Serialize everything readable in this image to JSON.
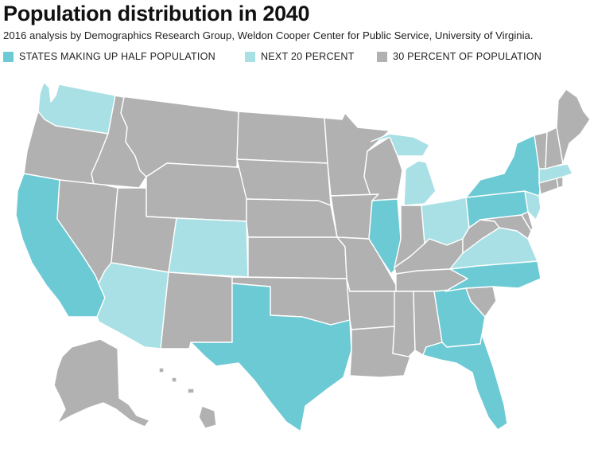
{
  "title": "Population distribution in 2040",
  "subtitle": "2016 analysis by Demographics Research Group, Weldon Cooper Center for Public Service, University of Virginia.",
  "legend": [
    {
      "label": "STATES MAKING UP HALF POPULATION",
      "color": "#6ccad4"
    },
    {
      "label": "NEXT 20 PERCENT",
      "color": "#a8e0e5"
    },
    {
      "label": "30 PERCENT OF POPULATION",
      "color": "#b1b1b1"
    }
  ],
  "colors": {
    "half": "#6ccad4",
    "next20": "#a8e0e5",
    "rest": "#b1b1b1"
  },
  "groups": {
    "half": [
      "California",
      "Texas",
      "Florida",
      "New York",
      "Illinois",
      "Pennsylvania",
      "Georgia",
      "North Carolina"
    ],
    "next20": [
      "Washington",
      "Arizona",
      "Colorado",
      "Michigan",
      "Ohio",
      "Virginia",
      "New Jersey",
      "Massachusetts"
    ],
    "rest": [
      "Oregon",
      "Idaho",
      "Montana",
      "Wyoming",
      "Nevada",
      "Utah",
      "New Mexico",
      "North Dakota",
      "South Dakota",
      "Nebraska",
      "Kansas",
      "Oklahoma",
      "Minnesota",
      "Iowa",
      "Missouri",
      "Arkansas",
      "Louisiana",
      "Wisconsin",
      "Indiana",
      "Kentucky",
      "Tennessee",
      "Mississippi",
      "Alabama",
      "South Carolina",
      "West Virginia",
      "Maryland",
      "Delaware",
      "Connecticut",
      "Rhode Island",
      "Vermont",
      "New Hampshire",
      "Maine",
      "Alaska",
      "Hawaii"
    ]
  }
}
